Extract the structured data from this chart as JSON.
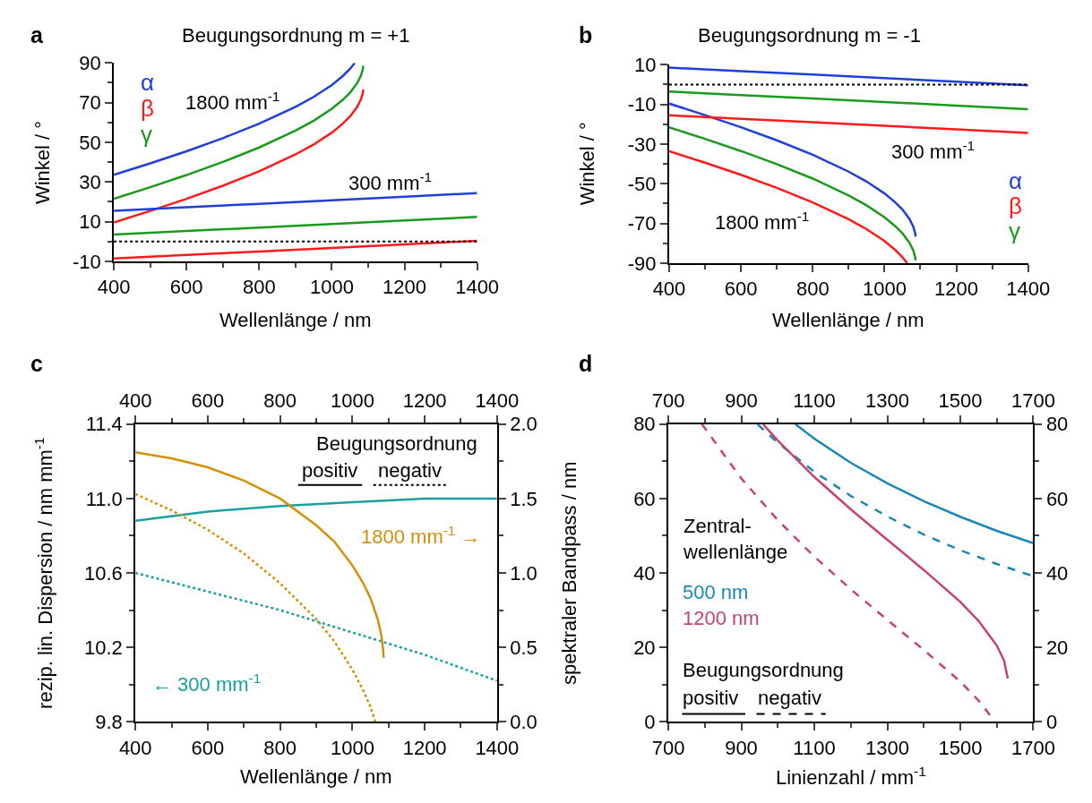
{
  "chart_data": [
    {
      "type": "line",
      "title": "Beugungsordnung m = +1",
      "xlabel": "Wellenlänge / nm",
      "ylabel": "Winkel / °",
      "xlim": [
        400,
        1400
      ],
      "xticks": [
        400,
        600,
        800,
        1000,
        1200,
        1400
      ],
      "ylim": [
        -10,
        90
      ],
      "yticks": [
        -10,
        10,
        30,
        50,
        70,
        90
      ],
      "ref_lines": [
        {
          "axis": "y",
          "value": 0,
          "color": "#000000",
          "line_style": "dotted"
        }
      ],
      "annotations": [
        "a",
        "1800 mm$^{-1}$",
        "300 mm$^{-1}$"
      ],
      "series": [
        {
          "name": "α",
          "color": "#1f3fdc",
          "x": [
            400,
            500,
            600,
            700,
            800,
            900,
            950,
            1000,
            1030,
            1050,
            1063
          ],
          "values": [
            33.6,
            39.4,
            45.5,
            52.1,
            59.4,
            67.9,
            72.9,
            78.9,
            83.4,
            87.0,
            90.0
          ]
        },
        {
          "name": "β",
          "color": "#ff1a1a",
          "x": [
            400,
            500,
            600,
            700,
            800,
            900,
            950,
            1000,
            1030,
            1050,
            1070,
            1080,
            1085,
            1086.5
          ],
          "values": [
            9.6,
            15.4,
            21.5,
            28.1,
            35.4,
            43.9,
            48.9,
            54.9,
            59.4,
            63.0,
            67.9,
            71.6,
            74.7,
            76.6
          ]
        },
        {
          "name": "γ",
          "color": "#1a9a1a",
          "x": [
            400,
            500,
            600,
            700,
            800,
            900,
            950,
            1000,
            1030,
            1050,
            1070,
            1080,
            1085,
            1086.5
          ],
          "values": [
            21.6,
            27.4,
            33.5,
            40.1,
            47.4,
            55.9,
            60.9,
            66.9,
            71.4,
            75.0,
            79.9,
            83.6,
            86.7,
            88.6
          ]
        },
        {
          "color": "#1f3fdc",
          "x": [
            400,
            600,
            800,
            1000,
            1200,
            1400
          ],
          "values": [
            15.5,
            17.3,
            19.0,
            20.8,
            22.6,
            24.4
          ]
        },
        {
          "color": "#ff1a1a",
          "x": [
            400,
            600,
            800,
            1000,
            1200,
            1400
          ],
          "values": [
            -8.5,
            -6.7,
            -5.0,
            -3.2,
            -1.4,
            0.4
          ]
        },
        {
          "color": "#1a9a1a",
          "x": [
            400,
            600,
            800,
            1000,
            1200,
            1400
          ],
          "values": [
            3.5,
            5.3,
            7.0,
            8.8,
            10.6,
            12.4
          ]
        }
      ]
    },
    {
      "type": "line",
      "title": "Beugungsordnung m = -1",
      "xlabel": "Wellenlänge / nm",
      "ylabel": "Winkel / °",
      "xlim": [
        400,
        1400
      ],
      "xticks": [
        400,
        600,
        800,
        1000,
        1200,
        1400
      ],
      "ylim": [
        -90,
        10
      ],
      "yticks": [
        -90,
        -70,
        -50,
        -30,
        -10,
        10
      ],
      "ref_lines": [
        {
          "axis": "y",
          "value": 0,
          "color": "#000000",
          "line_style": "dotted"
        }
      ],
      "annotations": [
        "b",
        "300 mm$^{-1}$",
        "1800 mm$^{-1}$"
      ],
      "series": [
        {
          "name": "α",
          "color": "#1f3fdc",
          "x": [
            400,
            500,
            600,
            700,
            800,
            900,
            950,
            1000,
            1030,
            1050,
            1070,
            1080,
            1085,
            1086.5
          ],
          "values": [
            -9.6,
            -15.4,
            -21.5,
            -28.1,
            -35.4,
            -43.9,
            -48.9,
            -54.9,
            -59.4,
            -63.0,
            -67.9,
            -71.6,
            -74.7,
            -76.6
          ]
        },
        {
          "name": "β",
          "color": "#ff1a1a",
          "x": [
            400,
            500,
            600,
            700,
            800,
            900,
            950,
            1000,
            1030,
            1050,
            1063
          ],
          "values": [
            -33.6,
            -39.4,
            -45.5,
            -52.1,
            -59.4,
            -67.9,
            -72.9,
            -78.9,
            -83.4,
            -87.0,
            -90.0
          ]
        },
        {
          "name": "γ",
          "color": "#1a9a1a",
          "x": [
            400,
            500,
            600,
            700,
            800,
            900,
            950,
            1000,
            1030,
            1050,
            1070,
            1080,
            1085,
            1086.5
          ],
          "values": [
            -21.6,
            -27.4,
            -33.5,
            -40.1,
            -47.4,
            -55.9,
            -60.9,
            -66.9,
            -71.4,
            -75.0,
            -79.9,
            -83.6,
            -86.7,
            -88.6
          ]
        },
        {
          "color": "#1f3fdc",
          "x": [
            400,
            600,
            800,
            1000,
            1200,
            1400
          ],
          "values": [
            8.5,
            6.7,
            5.0,
            3.2,
            1.4,
            -0.4
          ]
        },
        {
          "color": "#ff1a1a",
          "x": [
            400,
            600,
            800,
            1000,
            1200,
            1400
          ],
          "values": [
            -15.5,
            -17.3,
            -19.0,
            -20.8,
            -22.6,
            -24.4
          ]
        },
        {
          "color": "#1a9a1a",
          "x": [
            400,
            600,
            800,
            1000,
            1200,
            1400
          ],
          "values": [
            -3.5,
            -5.3,
            -7.0,
            -8.8,
            -10.6,
            -12.4
          ]
        }
      ]
    },
    {
      "type": "line",
      "xlabel": "Wellenlänge / nm",
      "ylabel": "rezip. lin. Dispersion / nm mm$^{-1}$",
      "xlim": [
        400,
        1400
      ],
      "xticks": [
        400,
        600,
        800,
        1000,
        1200,
        1400
      ],
      "x2lim": [
        400,
        1400
      ],
      "x2ticks": [
        400,
        600,
        800,
        1000,
        1200,
        1400
      ],
      "ylim": [
        9.8,
        11.4
      ],
      "yticks": [
        9.8,
        10.2,
        10.6,
        {
          "value": 11,
          "label": "11.0"
        },
        11.4
      ],
      "y2lim": [
        0,
        2
      ],
      "y2ticks": [
        {
          "value": 0,
          "label": "0.0"
        },
        0.5,
        {
          "value": 1,
          "label": "1.0"
        },
        1.5,
        {
          "value": 2,
          "label": "2.0"
        }
      ],
      "annotations": [
        "c",
        "Beugungsordnung",
        "positiv",
        "negativ",
        "1800 mm$^{-1}$ →",
        "← 300 mm$^{-1}$"
      ],
      "series": [
        {
          "color": "#1aa0a0",
          "line_style": "solid",
          "x": [
            400,
            600,
            800,
            1000,
            1200,
            1400
          ],
          "values": [
            10.88,
            10.93,
            10.96,
            10.98,
            11.0,
            11.0
          ]
        },
        {
          "color": "#1aa0a0",
          "line_style": "dotted",
          "x": [
            400,
            600,
            800,
            1000,
            1200,
            1400
          ],
          "values": [
            10.6,
            10.5,
            10.4,
            10.28,
            10.16,
            10.02
          ]
        },
        {
          "color": "#d4900a",
          "line_style": "solid",
          "axis": "y2",
          "x": [
            400,
            500,
            600,
            700,
            800,
            900,
            950,
            1000,
            1030,
            1050,
            1070,
            1080,
            1085,
            1086.5
          ],
          "values": [
            1.81,
            1.77,
            1.71,
            1.62,
            1.5,
            1.32,
            1.21,
            1.05,
            0.93,
            0.83,
            0.69,
            0.58,
            0.48,
            0.43
          ]
        },
        {
          "color": "#d4900a",
          "line_style": "dotted",
          "axis": "y2",
          "x": [
            400,
            500,
            600,
            700,
            800,
            900,
            950,
            1000,
            1030,
            1050,
            1063
          ],
          "values": [
            1.53,
            1.42,
            1.29,
            1.13,
            0.93,
            0.69,
            0.54,
            0.35,
            0.21,
            0.1,
            0.0
          ]
        }
      ]
    },
    {
      "type": "line",
      "xlabel": "Linienzahl / mm$^{-1}$",
      "ylabel": "spektraler Bandpass / nm",
      "legend_title": "Zentral-\nwellenlänge",
      "xlim": [
        700,
        1700
      ],
      "xticks": [
        700,
        900,
        1100,
        1300,
        1500,
        1700
      ],
      "x2lim": [
        700,
        1700
      ],
      "x2ticks": [
        700,
        900,
        1100,
        1300,
        1500,
        1700
      ],
      "ylim": [
        0,
        80
      ],
      "yticks": [
        0,
        20,
        40,
        60,
        80
      ],
      "y2lim": [
        0,
        80
      ],
      "y2ticks": [
        0,
        20,
        40,
        60,
        80
      ],
      "annotations": [
        "d",
        "Beugungsordnung",
        "positiv",
        "negativ"
      ],
      "series": [
        {
          "name": "500 nm",
          "color": "#1a88b5",
          "line_style": "solid",
          "x": [
            1048,
            1100,
            1200,
            1300,
            1400,
            1500,
            1600,
            1700
          ],
          "values": [
            80.0,
            76.1,
            69.6,
            64.1,
            59.3,
            55.1,
            51.3,
            48.0
          ]
        },
        {
          "color": "#1a88b5",
          "line_style": "dashed",
          "x": [
            945,
            1000,
            1100,
            1200,
            1300,
            1400,
            1500,
            1600,
            1700
          ],
          "values": [
            79.9,
            75.0,
            67.2,
            60.7,
            55.2,
            50.3,
            46.1,
            42.4,
            39.1
          ]
        },
        {
          "name": "1200 nm",
          "color": "#c4446c",
          "line_style": "solid",
          "x": [
            960,
            1000,
            1100,
            1200,
            1300,
            1400,
            1500,
            1550,
            1600,
            1620,
            1630
          ],
          "values": [
            79.9,
            75.6,
            65.8,
            57.1,
            48.9,
            40.8,
            32.2,
            27.1,
            20.5,
            16.4,
            11.6
          ]
        },
        {
          "color": "#c4446c",
          "line_style": "dashed",
          "x": [
            792,
            900,
            1000,
            1100,
            1200,
            1300,
            1400,
            1500,
            1550,
            1590,
            1594.6
          ],
          "values": [
            80.0,
            65.4,
            54.2,
            44.4,
            35.6,
            27.4,
            19.3,
            10.8,
            5.7,
            0.7,
            0.0
          ]
        }
      ]
    }
  ]
}
